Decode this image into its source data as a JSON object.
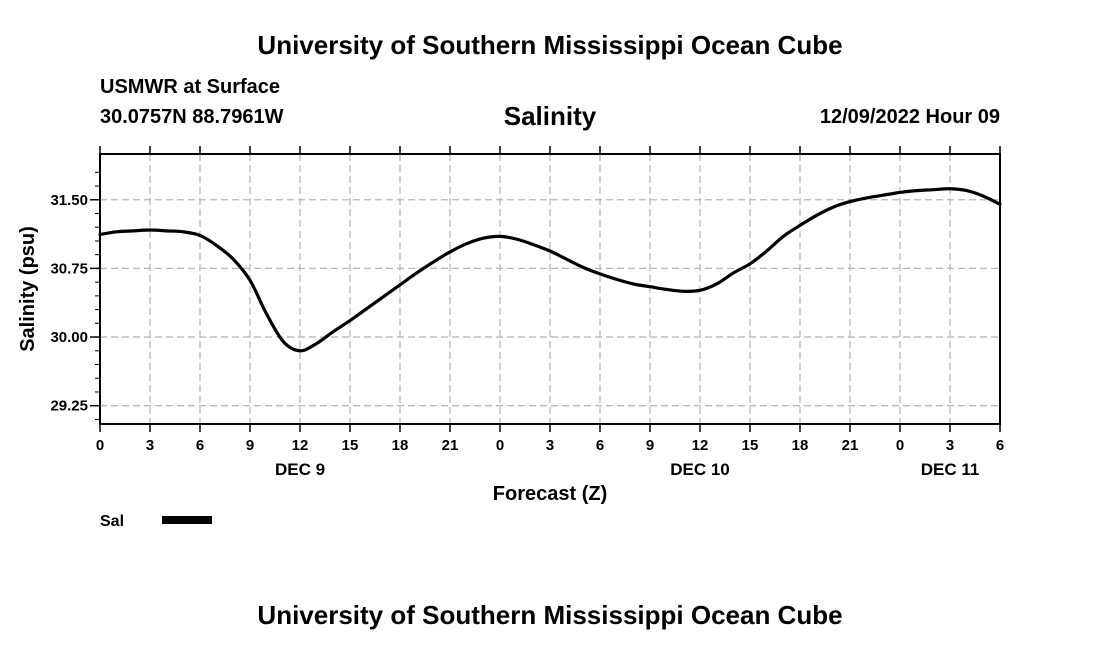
{
  "header": {
    "title": "University of Southern Mississippi Ocean Cube",
    "station": "USMWR at Surface",
    "coords": "30.0757N  88.7961W",
    "parameter": "Salinity",
    "datetime": "12/09/2022 Hour 09"
  },
  "footer": {
    "title": "University of Southern Mississippi Ocean Cube"
  },
  "legend": {
    "label": "Sal",
    "color": "#000000"
  },
  "chart_data": {
    "type": "line",
    "title": "Salinity",
    "xlabel": "Forecast (Z)",
    "ylabel": "Salinity (psu)",
    "xlim": [
      0,
      54
    ],
    "ylim": [
      29.05,
      32.0
    ],
    "yticks": [
      29.25,
      30.0,
      30.75,
      31.5
    ],
    "ytick_labels": [
      "29.25",
      "30.00",
      "30.75",
      "31.50"
    ],
    "xticks": [
      0,
      3,
      6,
      9,
      12,
      15,
      18,
      21,
      24,
      27,
      30,
      33,
      36,
      39,
      42,
      45,
      48,
      51,
      54
    ],
    "xtick_labels": [
      "0",
      "3",
      "6",
      "9",
      "12",
      "15",
      "18",
      "21",
      "0",
      "3",
      "6",
      "9",
      "12",
      "15",
      "18",
      "21",
      "0",
      "3",
      "6"
    ],
    "date_labels": [
      {
        "x": 12,
        "label": "DEC 9"
      },
      {
        "x": 36,
        "label": "DEC 10"
      },
      {
        "x": 51,
        "label": "DEC 11"
      }
    ],
    "grid": true,
    "series": [
      {
        "name": "Sal",
        "x": [
          0,
          1,
          2,
          3,
          4,
          5,
          6,
          7,
          8,
          9,
          10,
          11,
          12,
          13,
          14,
          15,
          16,
          17,
          18,
          19,
          20,
          21,
          22,
          23,
          24,
          25,
          26,
          27,
          28,
          29,
          30,
          31,
          32,
          33,
          34,
          35,
          36,
          37,
          38,
          39,
          40,
          41,
          42,
          43,
          44,
          45,
          46,
          47,
          48,
          49,
          50,
          51,
          52,
          53,
          54
        ],
        "values": [
          31.12,
          31.15,
          31.16,
          31.17,
          31.16,
          31.15,
          31.11,
          31.0,
          30.85,
          30.62,
          30.25,
          29.95,
          29.85,
          29.93,
          30.06,
          30.18,
          30.31,
          30.44,
          30.57,
          30.7,
          30.82,
          30.93,
          31.02,
          31.08,
          31.1,
          31.07,
          31.01,
          30.94,
          30.85,
          30.76,
          30.69,
          30.63,
          30.58,
          30.55,
          30.52,
          30.5,
          30.51,
          30.58,
          30.7,
          30.8,
          30.94,
          31.1,
          31.22,
          31.33,
          31.42,
          31.48,
          31.52,
          31.55,
          31.58,
          31.6,
          31.61,
          31.62,
          31.6,
          31.54,
          31.45
        ]
      }
    ]
  }
}
